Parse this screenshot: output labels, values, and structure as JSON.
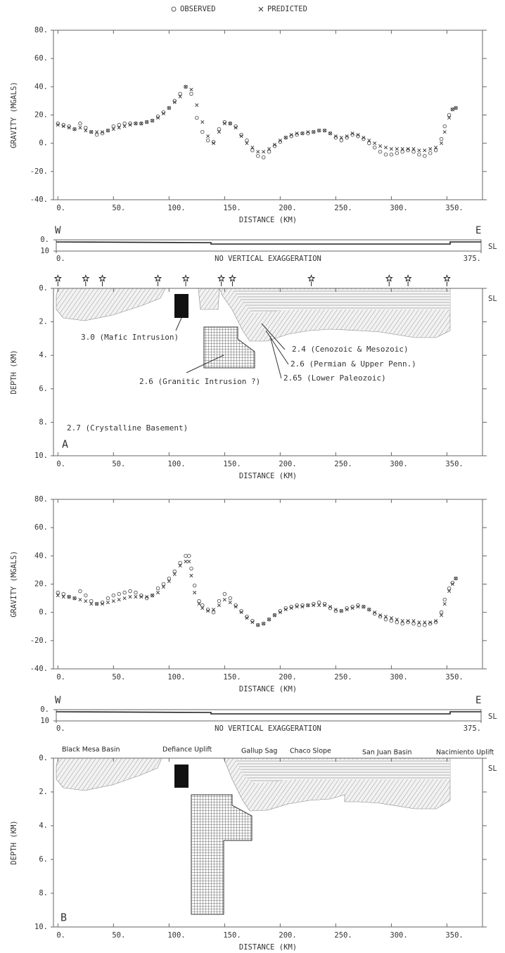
{
  "chart_data": [
    {
      "type": "scatter",
      "ylabel": "GRAVITY (MGALS)",
      "xlabel": "DISTANCE (KM)",
      "xlim": [
        -4,
        382
      ],
      "ylim": [
        -40,
        80
      ],
      "xticks": [
        {
          "value": 0,
          "label": "0."
        },
        {
          "value": 50,
          "label": "50."
        },
        {
          "value": 100,
          "label": "100."
        },
        {
          "value": 150,
          "label": "150."
        },
        {
          "value": 200,
          "label": "200."
        },
        {
          "value": 250,
          "label": "250."
        },
        {
          "value": 300,
          "label": "300."
        },
        {
          "value": 350,
          "label": "350."
        }
      ],
      "yticks": [
        {
          "value": -40,
          "label": "-40."
        },
        {
          "value": -20,
          "label": "-20."
        },
        {
          "value": 0,
          "label": "0."
        },
        {
          "value": 20,
          "label": "20."
        },
        {
          "value": 40,
          "label": "40."
        },
        {
          "value": 60,
          "label": "60."
        },
        {
          "value": 80,
          "label": "80."
        }
      ],
      "x": [
        0,
        5,
        10,
        15,
        20,
        25,
        30,
        35,
        40,
        45,
        50,
        55,
        60,
        65,
        70,
        75,
        80,
        85,
        90,
        95,
        100,
        105,
        110,
        115,
        120,
        125,
        130,
        135,
        140,
        145,
        150,
        155,
        160,
        165,
        170,
        175,
        180,
        185,
        190,
        195,
        200,
        205,
        210,
        215,
        220,
        225,
        230,
        235,
        240,
        245,
        250,
        255,
        260,
        265,
        270,
        275,
        280,
        285,
        290,
        295,
        300,
        305,
        310,
        315,
        320,
        325,
        330,
        335,
        340,
        345,
        348,
        352,
        355,
        358
      ],
      "series": [
        {
          "name": "OBSERVED",
          "marker": "circle",
          "color": "#555",
          "values": [
            14,
            13,
            12,
            10,
            14,
            11,
            8,
            6,
            7,
            9,
            12,
            13,
            14,
            14,
            14,
            14,
            15,
            16,
            19,
            22,
            25,
            30,
            35,
            40,
            35,
            18,
            8,
            2,
            1,
            10,
            15,
            14,
            12,
            6,
            2,
            -5,
            -9,
            -10,
            -6,
            -2,
            1,
            4,
            5,
            6,
            7,
            7,
            8,
            9,
            9,
            7,
            4,
            2,
            4,
            6,
            5,
            3,
            0,
            -3,
            -6,
            -8,
            -8,
            -7,
            -6,
            -5,
            -6,
            -8,
            -9,
            -7,
            -5,
            3,
            12,
            20,
            24,
            25
          ]
        },
        {
          "name": "PREDICTED",
          "marker": "cross",
          "color": "#333",
          "values": [
            13,
            12,
            11,
            10,
            11,
            9,
            8,
            8,
            8,
            9,
            10,
            11,
            12,
            13,
            14,
            14,
            15,
            16,
            18,
            21,
            25,
            29,
            33,
            40,
            38,
            27,
            15,
            5,
            0,
            8,
            14,
            14,
            11,
            5,
            0,
            -3,
            -6,
            -6,
            -4,
            -1,
            2,
            4,
            6,
            7,
            7,
            8,
            8,
            9,
            9,
            7,
            5,
            4,
            5,
            7,
            6,
            4,
            2,
            0,
            -2,
            -3,
            -4,
            -4,
            -4,
            -4,
            -4,
            -5,
            -5,
            -4,
            -3,
            0,
            8,
            18,
            24,
            25
          ]
        }
      ]
    },
    {
      "type": "section",
      "ylabel": "DEPTH (KM)",
      "xlabel": "DISTANCE (KM)",
      "xlim": [
        -4,
        382
      ],
      "ylim": [
        0,
        10
      ],
      "xticks": [
        {
          "value": 0,
          "label": "0."
        },
        {
          "value": 50,
          "label": "50."
        },
        {
          "value": 100,
          "label": "100."
        },
        {
          "value": 150,
          "label": "150."
        },
        {
          "value": 200,
          "label": "200."
        },
        {
          "value": 250,
          "label": "250."
        },
        {
          "value": 300,
          "label": "300."
        },
        {
          "value": 350,
          "label": "350."
        }
      ],
      "yticks": [
        {
          "value": 0,
          "label": "0."
        },
        {
          "value": 2,
          "label": "2."
        },
        {
          "value": 4,
          "label": "4."
        },
        {
          "value": 6,
          "label": "6."
        },
        {
          "value": 8,
          "label": "8."
        },
        {
          "value": 10,
          "label": "10."
        }
      ],
      "sl": "SL",
      "strip": {
        "left": "W",
        "right": "E",
        "note": "NO VERTICAL EXAGGERATION",
        "sl": "SL",
        "yticks": [
          {
            "value": 0,
            "label": "0."
          },
          10
        ],
        "xlim": [
          {
            "value": 0,
            "label": "0."
          },
          {
            "value": 375,
            "label": "375."
          }
        ]
      },
      "wells": [
        0,
        25,
        40,
        90,
        115,
        147,
        157,
        228,
        298,
        315,
        350
      ],
      "units": [
        "3.0 (Mafic Intrusion)",
        "2.6 (Granitic Intrusion ?)",
        "2.4 (Cenozoic & Mesozoic)",
        "2.6 (Permian & Upper Penn.)",
        "2.65 (Lower Paleozoic)",
        "2.7 (Crystalline Basement)"
      ],
      "panel_label": "A"
    },
    {
      "type": "scatter",
      "ylabel": "GRAVITY (MGALS)",
      "xlabel": "DISTANCE (KM)",
      "xlim": [
        -4,
        382
      ],
      "ylim": [
        -40,
        80
      ],
      "xticks": [
        {
          "value": 0,
          "label": "0."
        },
        {
          "value": 50,
          "label": "50."
        },
        {
          "value": 100,
          "label": "100."
        },
        {
          "value": 150,
          "label": "150."
        },
        {
          "value": 200,
          "label": "200."
        },
        {
          "value": 250,
          "label": "250."
        },
        {
          "value": 300,
          "label": "300."
        },
        {
          "value": 350,
          "label": "350."
        }
      ],
      "yticks": [
        {
          "value": -40,
          "label": "-40."
        },
        {
          "value": -20,
          "label": "-20."
        },
        {
          "value": 0,
          "label": "0."
        },
        {
          "value": 20,
          "label": "20."
        },
        {
          "value": 40,
          "label": "40."
        },
        {
          "value": 60,
          "label": "60."
        },
        {
          "value": 80,
          "label": "80."
        }
      ],
      "x": [
        0,
        5,
        10,
        15,
        20,
        25,
        30,
        35,
        40,
        45,
        50,
        55,
        60,
        65,
        70,
        75,
        80,
        85,
        90,
        95,
        100,
        105,
        110,
        115,
        118,
        120,
        123,
        127,
        130,
        135,
        140,
        145,
        150,
        155,
        160,
        165,
        170,
        175,
        180,
        185,
        190,
        195,
        200,
        205,
        210,
        215,
        220,
        225,
        230,
        235,
        240,
        245,
        250,
        255,
        260,
        265,
        270,
        275,
        280,
        285,
        290,
        295,
        300,
        305,
        310,
        315,
        320,
        325,
        330,
        335,
        340,
        345,
        348,
        352,
        355,
        358
      ],
      "series": [
        {
          "marker": "circle",
          "color": "#555",
          "values": [
            14,
            13,
            11,
            10,
            15,
            12,
            8,
            6,
            7,
            10,
            12,
            13,
            14,
            15,
            14,
            12,
            10,
            12,
            17,
            20,
            24,
            29,
            35,
            40,
            40,
            31,
            19,
            8,
            5,
            2,
            0,
            8,
            13,
            10,
            5,
            1,
            -3,
            -6,
            -9,
            -8,
            -5,
            -2,
            1,
            3,
            4,
            5,
            5,
            5,
            6,
            7,
            6,
            3,
            1,
            1,
            3,
            4,
            5,
            4,
            2,
            -1,
            -3,
            -5,
            -6,
            -7,
            -8,
            -7,
            -8,
            -9,
            -9,
            -8,
            -7,
            0,
            9,
            17,
            21,
            24
          ]
        },
        {
          "marker": "cross",
          "color": "#333",
          "values": [
            12,
            11,
            11,
            10,
            9,
            8,
            6,
            6,
            6,
            7,
            8,
            9,
            10,
            11,
            11,
            11,
            11,
            12,
            14,
            18,
            22,
            27,
            33,
            36,
            36,
            26,
            14,
            6,
            3,
            1,
            2,
            5,
            9,
            7,
            4,
            0,
            -4,
            -7,
            -9,
            -8,
            -5,
            -2,
            0,
            2,
            3,
            4,
            4,
            5,
            5,
            5,
            5,
            4,
            2,
            1,
            2,
            3,
            4,
            4,
            2,
            0,
            -2,
            -3,
            -4,
            -5,
            -6,
            -6,
            -6,
            -7,
            -7,
            -7,
            -6,
            -2,
            6,
            15,
            20,
            24
          ]
        }
      ]
    },
    {
      "type": "section",
      "ylabel": "DEPTH (KM)",
      "xlabel": "DISTANCE (KM)",
      "xlim": [
        -4,
        382
      ],
      "ylim": [
        0,
        10
      ],
      "xticks": [
        {
          "value": 0,
          "label": "0."
        },
        {
          "value": 50,
          "label": "50."
        },
        {
          "value": 100,
          "label": "100."
        },
        {
          "value": 150,
          "label": "150."
        },
        {
          "value": 200,
          "label": "200."
        },
        {
          "value": 250,
          "label": "250."
        },
        {
          "value": 300,
          "label": "300."
        },
        {
          "value": 350,
          "label": "350."
        }
      ],
      "yticks": [
        {
          "value": 0,
          "label": "0."
        },
        {
          "value": 2,
          "label": "2."
        },
        {
          "value": 4,
          "label": "4."
        },
        {
          "value": 6,
          "label": "6."
        },
        {
          "value": 8,
          "label": "8."
        },
        {
          "value": 10,
          "label": "10."
        }
      ],
      "sl": "SL",
      "strip": {
        "left": "W",
        "right": "E",
        "note": "NO VERTICAL EXAGGERATION",
        "sl": "SL",
        "yticks": [
          {
            "value": 0,
            "label": "0."
          },
          10
        ],
        "xlim": [
          {
            "value": 0,
            "label": "0."
          },
          {
            "value": 375,
            "label": "375."
          }
        ]
      },
      "regions": [
        "Black Mesa Basin",
        "Defiance Uplift",
        "Gallup Sag",
        "Chaco Slope",
        "San Juan Basin",
        "Nacimiento Uplift"
      ],
      "panel_label": "B"
    }
  ]
}
